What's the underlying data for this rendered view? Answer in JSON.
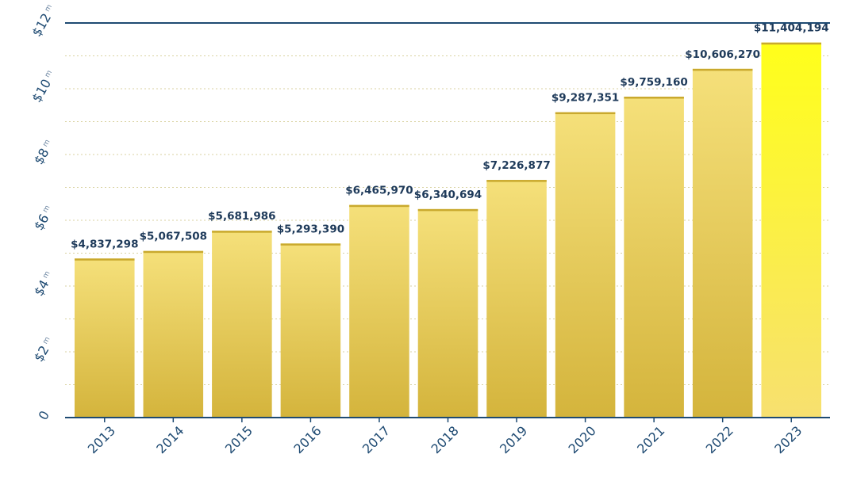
{
  "chart_data": {
    "type": "bar",
    "categories": [
      "2013",
      "2014",
      "2015",
      "2016",
      "2017",
      "2018",
      "2019",
      "2020",
      "2021",
      "2022",
      "2023"
    ],
    "values": [
      4837298,
      5067508,
      5681986,
      5293390,
      6465970,
      6340694,
      7226877,
      9287351,
      9759160,
      10606270,
      11404194
    ],
    "value_labels": [
      "$4,837,298",
      "$5,067,508",
      "$5,681,986",
      "$5,293,390",
      "$6,465,970",
      "$6,340,694",
      "$7,226,877",
      "$9,287,351",
      "$9,759,160",
      "$10,606,270",
      "$11,404,194"
    ],
    "title": "",
    "xlabel": "",
    "ylabel": "",
    "ylim": [
      0,
      12000000
    ],
    "y_ticks": [
      {
        "value": 0,
        "label": "0",
        "unit": ""
      },
      {
        "value": 2000000,
        "label": "$2",
        "unit": "m"
      },
      {
        "value": 4000000,
        "label": "$4",
        "unit": "m"
      },
      {
        "value": 6000000,
        "label": "$6",
        "unit": "m"
      },
      {
        "value": 8000000,
        "label": "$8",
        "unit": "m"
      },
      {
        "value": 10000000,
        "label": "$10",
        "unit": "m"
      },
      {
        "value": 12000000,
        "label": "$12",
        "unit": "m"
      }
    ],
    "grid": true,
    "highlight_index": 10,
    "colors": {
      "bar_light": "#f5e07a",
      "bar_dark": "#d4b43c",
      "bar_top": "#c9a92e",
      "highlight_light": "#f7e070",
      "highlight_dark": "#ffff1a",
      "axis": "#1e4a72",
      "grid": "#d9d2a0",
      "label": "#1e3a5a",
      "zero_label": "#c9a200",
      "highlight_tick": "#c9a200"
    }
  }
}
